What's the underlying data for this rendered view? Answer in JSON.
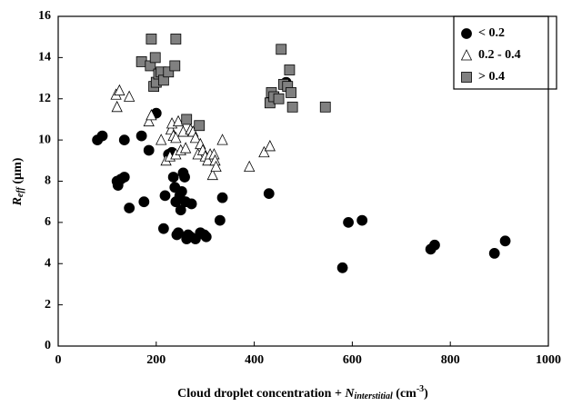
{
  "chart_data": {
    "type": "scatter",
    "xlabel": [
      "Cloud droplet concentration + ",
      "N",
      "interstitial",
      " (cm",
      "-3",
      ")"
    ],
    "ylabel": [
      "R",
      "eff",
      " (µm)"
    ],
    "xlim": [
      0,
      1000
    ],
    "xticks": [
      0,
      200,
      400,
      600,
      800,
      1000
    ],
    "ylim": [
      0,
      16
    ],
    "yticks": [
      0,
      2,
      4,
      6,
      8,
      10,
      12,
      14,
      16
    ],
    "grid": false,
    "legend": "upper right",
    "series": [
      {
        "name": "< 0.2",
        "color": "#000000",
        "marker": "circle",
        "x": [
          80,
          90,
          120,
          122,
          128,
          135,
          135,
          145,
          170,
          175,
          185,
          200,
          215,
          218,
          225,
          232,
          235,
          238,
          240,
          242,
          245,
          248,
          250,
          252,
          255,
          258,
          260,
          262,
          265,
          270,
          272,
          280,
          290,
          298,
          302,
          330,
          335,
          430,
          465,
          580,
          592,
          620,
          760,
          768,
          890,
          912
        ],
        "values": [
          10.0,
          10.2,
          8.0,
          7.8,
          8.1,
          8.2,
          10.0,
          6.7,
          10.2,
          7.0,
          9.5,
          11.3,
          5.7,
          7.3,
          9.3,
          9.4,
          8.2,
          7.7,
          7.0,
          5.4,
          5.5,
          7.3,
          6.6,
          7.5,
          8.4,
          8.2,
          7.0,
          5.2,
          5.4,
          5.3,
          6.9,
          5.2,
          5.5,
          5.4,
          5.3,
          6.1,
          7.2,
          7.4,
          12.8,
          3.8,
          6.0,
          6.1,
          4.7,
          4.9,
          4.5,
          5.1
        ]
      },
      {
        "name": "0.2 - 0.4",
        "color": "#ffffff",
        "marker": "triangle",
        "x": [
          118,
          120,
          125,
          145,
          185,
          190,
          210,
          220,
          228,
          230,
          232,
          235,
          240,
          240,
          245,
          250,
          255,
          260,
          270,
          275,
          280,
          285,
          290,
          295,
          300,
          305,
          310,
          315,
          318,
          320,
          322,
          335,
          390,
          420,
          432
        ],
        "values": [
          12.2,
          11.6,
          12.4,
          12.1,
          10.9,
          11.2,
          10.0,
          9.0,
          9.2,
          10.5,
          10.8,
          10.2,
          10.1,
          9.3,
          10.9,
          9.5,
          10.4,
          9.6,
          10.5,
          10.4,
          10.1,
          9.3,
          9.8,
          9.5,
          9.2,
          9.0,
          9.3,
          8.3,
          9.3,
          9.0,
          8.7,
          10.0,
          8.7,
          9.4,
          9.7
        ]
      },
      {
        "name": "> 0.4",
        "color": "#808080",
        "marker": "square",
        "x": [
          170,
          188,
          190,
          195,
          198,
          200,
          205,
          210,
          215,
          225,
          238,
          240,
          262,
          288,
          432,
          435,
          440,
          450,
          455,
          460,
          468,
          472,
          475,
          478,
          545
        ],
        "values": [
          13.8,
          13.6,
          14.9,
          12.6,
          14.0,
          12.8,
          13.2,
          13.3,
          12.9,
          13.3,
          13.6,
          14.9,
          11.0,
          10.7,
          11.8,
          12.3,
          12.1,
          12.0,
          14.4,
          12.7,
          12.6,
          13.4,
          12.3,
          11.6,
          11.6
        ]
      }
    ]
  }
}
